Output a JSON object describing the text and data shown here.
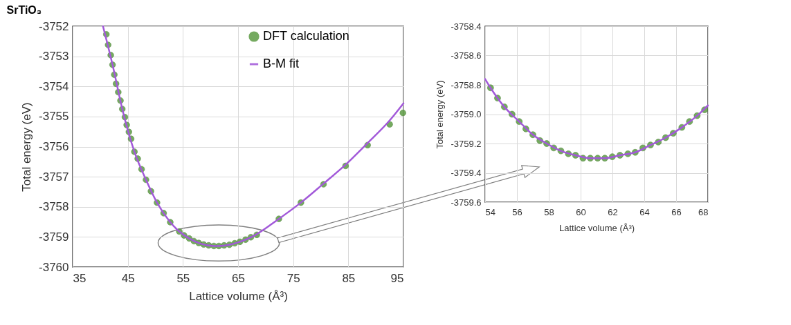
{
  "chart_data": [
    {
      "type": "scatter",
      "title": "SrTiO₃",
      "xlabel": "Lattice volume (Å³)",
      "ylabel": "Total energy (eV)",
      "xlim": [
        35,
        95
      ],
      "ylim": [
        -3760,
        -3752
      ],
      "xticks": [
        35,
        45,
        55,
        65,
        75,
        85,
        95
      ],
      "yticks": [
        -3760,
        -3759,
        -3758,
        -3757,
        -3756,
        -3755,
        -3754,
        -3753,
        -3752
      ],
      "grid": true,
      "legend": "top right",
      "series": [
        {
          "name": "DFT calculation",
          "type": "scatter",
          "marker": "circle",
          "color": "#5e9c45",
          "x": [
            41.11,
            41.43,
            41.91,
            42.23,
            42.55,
            42.87,
            43.27,
            43.67,
            44.0,
            44.48,
            44.8,
            45.2,
            45.6,
            46.2,
            46.8,
            47.5,
            48.3,
            49.2,
            50.3,
            51.5,
            52.7,
            54.34,
            55.21,
            56.14,
            57.0,
            57.87,
            58.76,
            59.68,
            60.61,
            61.52,
            62.47,
            63.43,
            64.39,
            65.34,
            66.36,
            67.32,
            68.4,
            72.4,
            76.4,
            80.5,
            84.5,
            88.5,
            92.5,
            94.9
          ],
          "values": [
            -3752.27,
            -3752.62,
            -3752.96,
            -3753.28,
            -3753.61,
            -3753.91,
            -3754.19,
            -3754.47,
            -3754.75,
            -3755.02,
            -3755.28,
            -3755.51,
            -3755.74,
            -3756.17,
            -3756.4,
            -3756.75,
            -3757.1,
            -3757.48,
            -3757.86,
            -3758.21,
            -3758.51,
            -3758.82,
            -3758.95,
            -3759.05,
            -3759.14,
            -3759.2,
            -3759.25,
            -3759.28,
            -3759.3,
            -3759.3,
            -3759.28,
            -3759.26,
            -3759.21,
            -3759.16,
            -3759.09,
            -3759.01,
            -3758.93,
            -3758.4,
            -3757.86,
            -3757.25,
            -3756.64,
            -3755.95,
            -3755.26,
            -3754.88
          ]
        },
        {
          "name": "B-M fit",
          "type": "line",
          "color": "#a259d9",
          "x": [
            40.5,
            42.23,
            44.0,
            46.2,
            48.3,
            50.3,
            52.7,
            54.34,
            56.14,
            58.31,
            60.61,
            61.52,
            63.43,
            65.34,
            67.79,
            72.4,
            76.4,
            80.5,
            84.5,
            88.5,
            92.5,
            95
          ],
          "values": [
            -3752.0,
            -3753.28,
            -3754.75,
            -3756.17,
            -3757.1,
            -3757.86,
            -3758.51,
            -3758.82,
            -3759.05,
            -3759.23,
            -3759.3,
            -3759.3,
            -3759.26,
            -3759.16,
            -3758.97,
            -3758.4,
            -3757.86,
            -3757.23,
            -3756.6,
            -3755.88,
            -3755.13,
            -3754.56
          ]
        }
      ]
    },
    {
      "type": "scatter",
      "xlabel": "Lattice volume (Å³)",
      "ylabel": "Total energy (eV)",
      "xlim": [
        54,
        68
      ],
      "ylim": [
        -3759.6,
        -3758.4
      ],
      "xticks": [
        54,
        56,
        58,
        60,
        62,
        64,
        66,
        68
      ],
      "yticks": [
        -3759.6,
        -3759.4,
        -3759.2,
        {
          "value": -3759,
          "label": "-3759.0"
        },
        -3758.8,
        -3758.6,
        -3758.4
      ],
      "grid": true,
      "legend": "top right",
      "series": [
        {
          "name": "DFT calculation",
          "type": "scatter",
          "marker": "circle",
          "color": "#5e9c45",
          "x": [
            54.34,
            54.78,
            55.21,
            55.69,
            56.14,
            56.56,
            57.0,
            57.44,
            57.87,
            58.31,
            58.76,
            59.23,
            59.68,
            60.15,
            60.61,
            61.07,
            61.52,
            61.99,
            62.47,
            62.97,
            63.43,
            63.91,
            64.39,
            64.88,
            65.34,
            65.82,
            66.36,
            66.84,
            67.32,
            67.79
          ],
          "values": [
            -3758.82,
            -3758.89,
            -3758.95,
            -3759.0,
            -3759.05,
            -3759.1,
            -3759.14,
            -3759.18,
            -3759.2,
            -3759.23,
            -3759.25,
            -3759.27,
            -3759.28,
            -3759.3,
            -3759.3,
            -3759.3,
            -3759.3,
            -3759.29,
            -3759.28,
            -3759.27,
            -3759.26,
            -3759.23,
            -3759.21,
            -3759.19,
            -3759.16,
            -3759.13,
            -3759.09,
            -3759.05,
            -3759.01,
            -3758.97
          ]
        },
        {
          "name": "B-M fit",
          "type": "line",
          "color": "#a259d9",
          "x": [
            54.0,
            54.34,
            55.21,
            56.14,
            57.0,
            57.87,
            58.76,
            59.68,
            60.61,
            61.52,
            62.47,
            63.43,
            64.39,
            65.34,
            66.36,
            67.32,
            68.0
          ],
          "values": [
            -3758.76,
            -3758.82,
            -3758.95,
            -3759.05,
            -3759.14,
            -3759.2,
            -3759.25,
            -3759.28,
            -3759.3,
            -3759.3,
            -3759.28,
            -3759.26,
            -3759.21,
            -3759.16,
            -3759.09,
            -3759.01,
            -3758.94
          ]
        }
      ]
    }
  ]
}
